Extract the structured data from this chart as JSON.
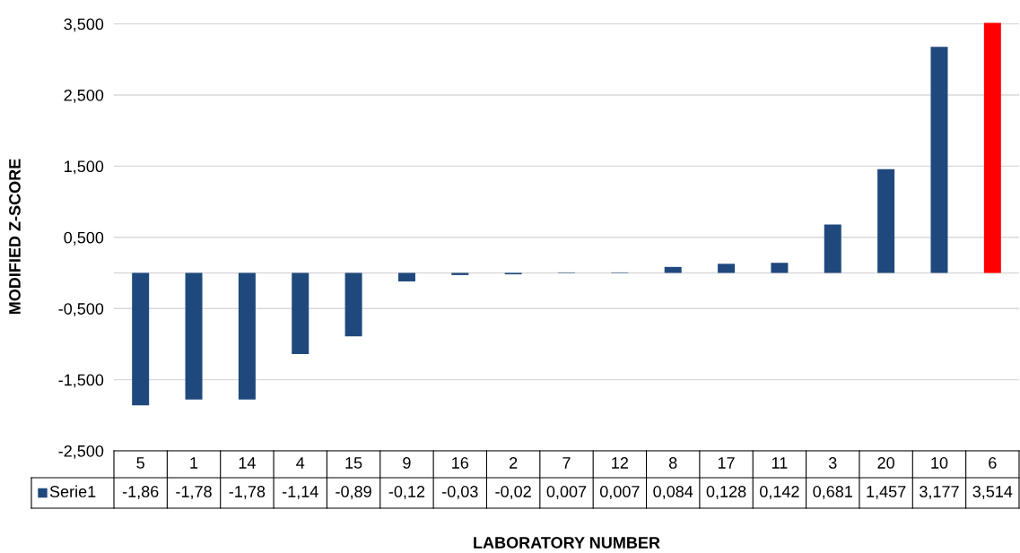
{
  "chart_data": {
    "type": "bar",
    "xlabel": "LABORATORY NUMBER",
    "ylabel": "MODIFIED Z-SCORE",
    "categories": [
      "5",
      "1",
      "14",
      "4",
      "15",
      "9",
      "16",
      "2",
      "7",
      "12",
      "8",
      "17",
      "11",
      "3",
      "20",
      "10",
      "6"
    ],
    "series": [
      {
        "name": "Serie1",
        "color": "#1f497d",
        "values": [
          -1.86,
          -1.78,
          -1.78,
          -1.14,
          -0.89,
          -0.12,
          -0.03,
          -0.02,
          0.007,
          0.007,
          0.084,
          0.128,
          0.142,
          0.681,
          1.457,
          3.177,
          3.514
        ],
        "colors": [
          "#1f497d",
          "#1f497d",
          "#1f497d",
          "#1f497d",
          "#1f497d",
          "#1f497d",
          "#1f497d",
          "#1f497d",
          "#1f497d",
          "#1f497d",
          "#1f497d",
          "#1f497d",
          "#1f497d",
          "#1f497d",
          "#1f497d",
          "#1f497d",
          "#ff0000"
        ],
        "value_labels": [
          "-1,86",
          "-1,78",
          "-1,78",
          "-1,14",
          "-0,89",
          "-0,12",
          "-0,03",
          "-0,02",
          "0,007",
          "0,007",
          "0,084",
          "0,128",
          "0,142",
          "0,681",
          "1,457",
          "3,177",
          "3,514"
        ]
      }
    ],
    "ylim": [
      -2.5,
      3.52
    ],
    "yticks": [
      {
        "value": -2.5,
        "label": "-2,500"
      },
      {
        "value": -1.5,
        "label": "-1,500"
      },
      {
        "value": -0.5,
        "label": "-0,500"
      },
      {
        "value": 0.5,
        "label": "0,500"
      },
      {
        "value": 1.5,
        "label": "1,500"
      },
      {
        "value": 2.5,
        "label": "2,500"
      },
      {
        "value": 3.5,
        "label": "3,500"
      }
    ],
    "grid": "y",
    "legend": "bottom"
  }
}
